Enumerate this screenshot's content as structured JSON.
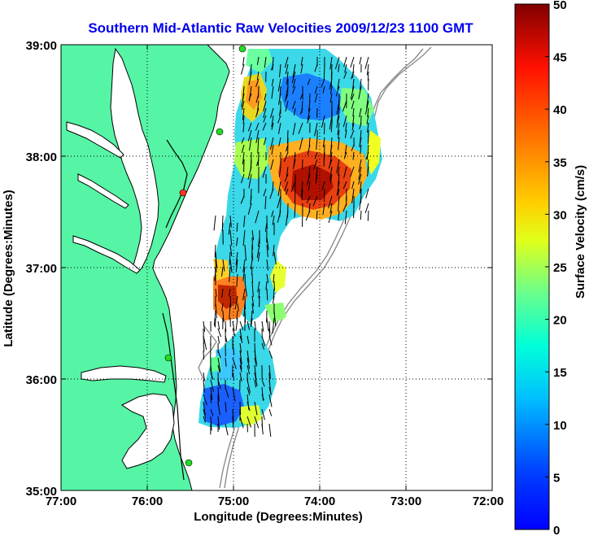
{
  "title": "Southern Mid-Atlantic Raw Velocities 2009/12/23 1100 GMT",
  "x_axis": {
    "label": "Longitude (Degrees:Minutes)",
    "ticks": [
      "77:00",
      "76:00",
      "75:00",
      "74:00",
      "73:00",
      "72:00"
    ]
  },
  "y_axis": {
    "label": "Latitude (Degrees:Minutes)",
    "ticks": [
      "39:00",
      "38:00",
      "37:00",
      "36:00",
      "35:00"
    ]
  },
  "colorbar": {
    "label": "Surface Velocity (cm/s)",
    "ticks": [
      "50",
      "45",
      "40",
      "35",
      "30",
      "25",
      "20",
      "15",
      "10",
      "5",
      "0"
    ],
    "colormap": "jet"
  },
  "colors": {
    "title": "#0000ee",
    "land": "#55f5a5",
    "coast": "#000000",
    "bathymetry": "#8c8c8c",
    "vector": "#000000",
    "station": "#22dd22",
    "station_highlight": "#ff3322"
  }
}
